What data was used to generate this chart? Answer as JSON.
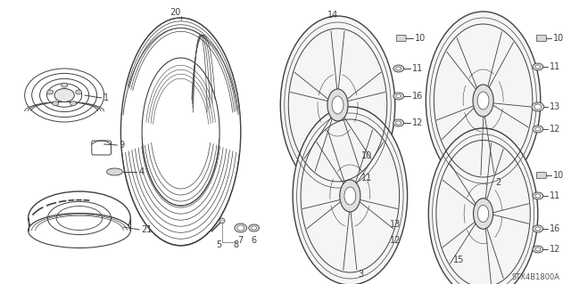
{
  "bg_color": "#ffffff",
  "line_color": "#404040",
  "fig_width": 6.4,
  "fig_height": 3.19,
  "diagram_code": "STX4B1800A",
  "label_size": 7.0,
  "anno_size": 6.5
}
